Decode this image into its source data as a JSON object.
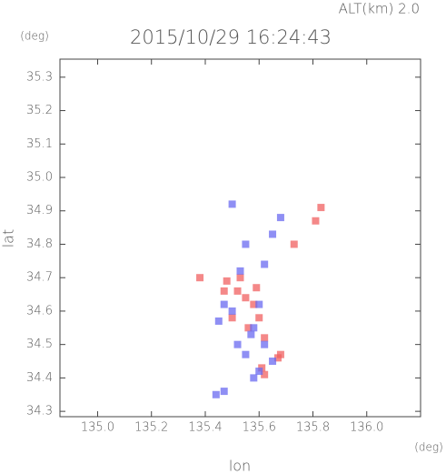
{
  "chart_data": {
    "type": "scatter",
    "header": "ALT(km) 2.0",
    "title": "2015/10/29 16:24:43",
    "y_unit": "(deg)",
    "x_unit": "(deg)",
    "x_label": "lon",
    "y_label": "lat",
    "xlim": [
      134.86,
      136.2
    ],
    "ylim": [
      34.284,
      35.354
    ],
    "xticks": [
      {
        "value": 135.0,
        "label": "135.0"
      },
      135.2,
      135.4,
      135.6,
      135.8,
      {
        "value": 136.0,
        "label": "136.0"
      }
    ],
    "yticks": [
      34.3,
      34.4,
      34.5,
      34.6,
      34.7,
      34.8,
      34.9,
      {
        "value": 35.0,
        "label": "35.0"
      },
      35.1,
      35.2,
      35.3
    ],
    "series": [
      {
        "color": "#f06060",
        "x": [
          135.67,
          135.68,
          135.62,
          135.61,
          135.52,
          135.55,
          135.58,
          135.6,
          135.47,
          135.83,
          135.81,
          135.73,
          135.5,
          135.56,
          135.53,
          135.48,
          135.38,
          135.59,
          135.62
        ],
        "values": [
          34.46,
          34.47,
          34.41,
          34.43,
          34.66,
          34.64,
          34.62,
          34.58,
          34.66,
          34.91,
          34.87,
          34.8,
          34.58,
          34.55,
          34.7,
          34.69,
          34.7,
          34.67,
          34.52
        ]
      },
      {
        "color": "#6a6af0",
        "x": [
          135.47,
          135.44,
          135.58,
          135.6,
          135.65,
          135.52,
          135.55,
          135.5,
          135.47,
          135.53,
          135.6,
          135.58,
          135.5,
          135.55,
          135.65,
          135.68,
          135.62,
          135.57,
          135.45,
          135.62
        ],
        "values": [
          34.36,
          34.35,
          34.4,
          34.42,
          34.45,
          34.5,
          34.47,
          34.6,
          34.62,
          34.72,
          34.62,
          34.55,
          34.92,
          34.8,
          34.83,
          34.88,
          34.74,
          34.53,
          34.57,
          34.5
        ]
      }
    ]
  }
}
